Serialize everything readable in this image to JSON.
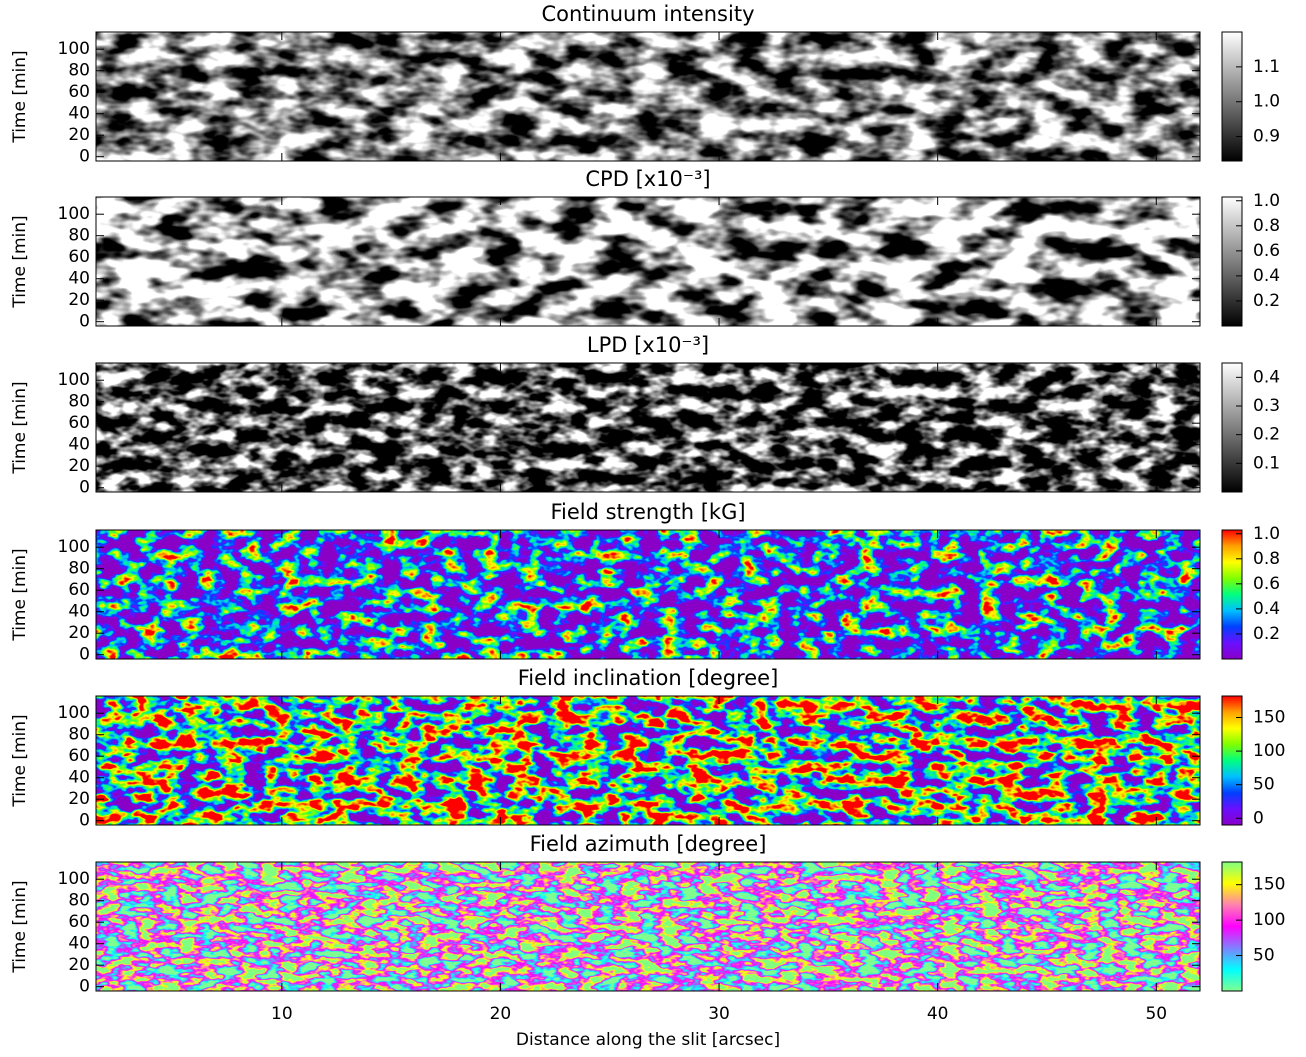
{
  "chart_data": [
    {
      "type": "heatmap",
      "title": "Continuum intensity",
      "ylabel": "Time [min]",
      "xlim": [
        1.5,
        52
      ],
      "xticks": [
        10,
        20,
        30,
        40,
        50
      ],
      "ylim": [
        -4,
        116
      ],
      "yticks": [
        0,
        20,
        40,
        60,
        80,
        100
      ],
      "colorbar": {
        "lim": [
          0.83,
          1.2
        ],
        "ticks": [
          0.9,
          {
            "value": 1.0,
            "label": "1.0"
          },
          1.1
        ],
        "colors": [
          "#000000",
          "#ffffff"
        ]
      }
    },
    {
      "type": "heatmap",
      "title": "CPD [x10⁻³]",
      "ylabel": "Time [min]",
      "xlim": [
        1.5,
        52
      ],
      "xticks": [
        10,
        20,
        30,
        40,
        50
      ],
      "ylim": [
        -4,
        116
      ],
      "yticks": [
        0,
        20,
        40,
        60,
        80,
        100
      ],
      "colorbar": {
        "lim": [
          0.0,
          1.03
        ],
        "ticks": [
          0.2,
          0.4,
          0.6,
          0.8,
          {
            "value": 1.0,
            "label": "1.0"
          }
        ],
        "colors": [
          "#000000",
          "#ffffff"
        ]
      }
    },
    {
      "type": "heatmap",
      "title": "LPD [x10⁻³]",
      "ylabel": "Time [min]",
      "xlim": [
        1.5,
        52
      ],
      "xticks": [
        10,
        20,
        30,
        40,
        50
      ],
      "ylim": [
        -4,
        116
      ],
      "yticks": [
        0,
        20,
        40,
        60,
        80,
        100
      ],
      "colorbar": {
        "lim": [
          0.0,
          0.45
        ],
        "ticks": [
          0.1,
          0.2,
          0.3,
          0.4
        ],
        "colors": [
          "#000000",
          "#ffffff"
        ]
      }
    },
    {
      "type": "heatmap",
      "title": "Field strength [kG]",
      "ylabel": "Time [min]",
      "xlim": [
        1.5,
        52
      ],
      "xticks": [
        10,
        20,
        30,
        40,
        50
      ],
      "ylim": [
        -4,
        116
      ],
      "yticks": [
        0,
        20,
        40,
        60,
        80,
        100
      ],
      "colorbar": {
        "lim": [
          0.0,
          1.03
        ],
        "ticks": [
          0.2,
          0.4,
          0.6,
          0.8,
          {
            "value": 1.0,
            "label": "1.0"
          }
        ],
        "colors": [
          "#8a00c8",
          "#6a10ff",
          "#0040ff",
          "#00c0ff",
          "#00ff80",
          "#80ff00",
          "#ffff00",
          "#ffa000",
          "#ff0000"
        ]
      }
    },
    {
      "type": "heatmap",
      "title": "Field inclination [degree]",
      "ylabel": "Time [min]",
      "xlim": [
        1.5,
        52
      ],
      "xticks": [
        10,
        20,
        30,
        40,
        50
      ],
      "ylim": [
        -4,
        116
      ],
      "yticks": [
        0,
        20,
        40,
        60,
        80,
        100
      ],
      "colorbar": {
        "lim": [
          -10,
          182
        ],
        "ticks": [
          0,
          50,
          100,
          150
        ],
        "colors": [
          "#8a00c8",
          "#6a10ff",
          "#0040ff",
          "#00c0ff",
          "#00ff80",
          "#80ff00",
          "#ffff00",
          "#ffa000",
          "#ff0000"
        ]
      }
    },
    {
      "type": "heatmap",
      "title": "Field azimuth [degree]",
      "ylabel": "Time [min]",
      "xlabel": "Distance along the slit [arcsec]",
      "xlim": [
        1.5,
        52
      ],
      "xticks": [
        10,
        20,
        30,
        40,
        50
      ],
      "ylim": [
        -4,
        116
      ],
      "yticks": [
        0,
        20,
        40,
        60,
        80,
        100
      ],
      "colorbar": {
        "lim": [
          0,
          182
        ],
        "ticks": [
          50,
          100,
          150
        ],
        "colors": [
          "#80ff90",
          "#00ffff",
          "#8080ff",
          "#ff00ff",
          "#ff80b0",
          "#ffff00",
          "#80ff80"
        ]
      }
    }
  ]
}
